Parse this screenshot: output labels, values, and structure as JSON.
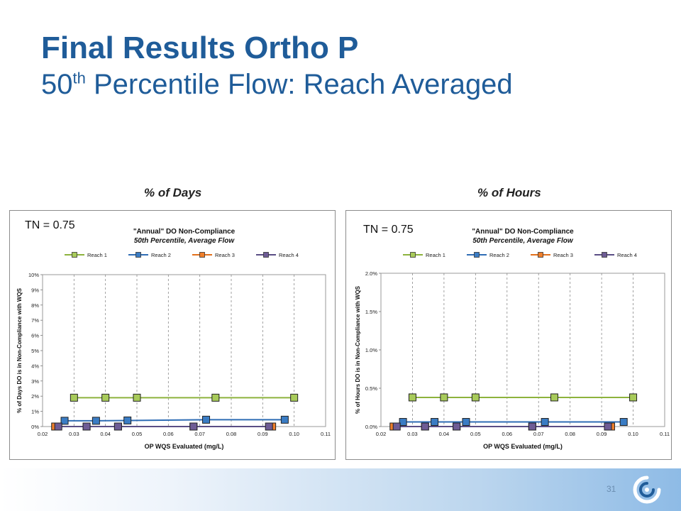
{
  "slide": {
    "title": "Final Results Ortho P",
    "subtitle_prefix": "50",
    "subtitle_sup": "th",
    "subtitle_rest": " Percentile Flow: Reach Averaged",
    "page_number": "31"
  },
  "panels": [
    {
      "label": "% of Days",
      "annotation": "TN = 0.75"
    },
    {
      "label": "% of Hours",
      "annotation": "TN = 0.75"
    }
  ],
  "chart_data": [
    {
      "type": "line",
      "title_line1": "\"Annual\" DO Non-Compliance",
      "title_line2": "50th Percentile, Average Flow",
      "xlabel": "OP WQS Evaluated (mg/L)",
      "ylabel": "% of Days DO is in Non-Compliance with WQS",
      "xlim": [
        0.02,
        0.11
      ],
      "ylim": [
        0,
        10
      ],
      "xticks": [
        "0.02",
        "0.03",
        "0.04",
        "0.05",
        "0.06",
        "0.07",
        "0.08",
        "0.09",
        "0.10",
        "0.11"
      ],
      "yticks": [
        "0%",
        "1%",
        "2%",
        "3%",
        "4%",
        "5%",
        "6%",
        "7%",
        "8%",
        "9%",
        "10%"
      ],
      "grid": "vertical dashed",
      "legend": "top",
      "series": [
        {
          "name": "Reach 1",
          "color": "#8db33d",
          "marker_fill": "#a8cb5a",
          "x": [
            0.03,
            0.04,
            0.05,
            0.075,
            0.1
          ],
          "y": [
            1.9,
            1.9,
            1.9,
            1.9,
            1.9
          ]
        },
        {
          "name": "Reach 2",
          "color": "#2f6db5",
          "marker_fill": "#3a7cc4",
          "x": [
            0.027,
            0.037,
            0.047,
            0.072,
            0.097
          ],
          "y": [
            0.38,
            0.38,
            0.4,
            0.45,
            0.45
          ]
        },
        {
          "name": "Reach 3",
          "color": "#e2701b",
          "marker_fill": "#f07f2b",
          "x": [
            0.024,
            0.034,
            0.044,
            0.068,
            0.093
          ],
          "y": [
            0,
            0,
            0,
            0,
            0
          ]
        },
        {
          "name": "Reach 4",
          "color": "#5a4e85",
          "marker_fill": "#6e5c95",
          "x": [
            0.025,
            0.034,
            0.044,
            0.068,
            0.092
          ],
          "y": [
            0,
            0,
            0,
            0,
            0
          ]
        }
      ]
    },
    {
      "type": "line",
      "title_line1": "\"Annual\" DO Non-Compliance",
      "title_line2": "50th Percentile, Average Flow",
      "xlabel": "OP WQS Evaluated (mg/L)",
      "ylabel": "% of Hours DO is in Non-Compliance with WQS",
      "xlim": [
        0.02,
        0.11
      ],
      "ylim": [
        0,
        2
      ],
      "xticks": [
        "0.02",
        "0.03",
        "0.04",
        "0.05",
        "0.06",
        "0.07",
        "0.08",
        "0.09",
        "0.10",
        "0.11"
      ],
      "yticks": [
        "0.0%",
        "0.5%",
        "1.0%",
        "1.5%",
        "2.0%"
      ],
      "grid": "vertical dashed",
      "legend": "top",
      "series": [
        {
          "name": "Reach 1",
          "color": "#8db33d",
          "marker_fill": "#a8cb5a",
          "x": [
            0.03,
            0.04,
            0.05,
            0.075,
            0.1
          ],
          "y": [
            0.38,
            0.38,
            0.38,
            0.38,
            0.38
          ]
        },
        {
          "name": "Reach 2",
          "color": "#2f6db5",
          "marker_fill": "#3a7cc4",
          "x": [
            0.027,
            0.037,
            0.047,
            0.072,
            0.097
          ],
          "y": [
            0.06,
            0.06,
            0.06,
            0.06,
            0.06
          ]
        },
        {
          "name": "Reach 3",
          "color": "#e2701b",
          "marker_fill": "#f07f2b",
          "x": [
            0.024,
            0.034,
            0.044,
            0.068,
            0.093
          ],
          "y": [
            0,
            0,
            0,
            0,
            0
          ]
        },
        {
          "name": "Reach 4",
          "color": "#5a4e85",
          "marker_fill": "#6e5c95",
          "x": [
            0.025,
            0.034,
            0.044,
            0.068,
            0.092
          ],
          "y": [
            0,
            0,
            0,
            0,
            0
          ]
        }
      ]
    }
  ]
}
